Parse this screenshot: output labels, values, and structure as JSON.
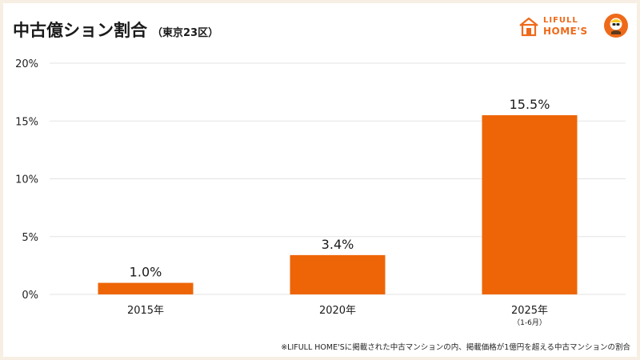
{
  "header": {
    "title": "中古億ション割合",
    "subtitle": "（東京23区）"
  },
  "logo": {
    "line1": "LIFULL",
    "line2": "HOME'S"
  },
  "chart_data": {
    "type": "bar",
    "title": "中古億ション割合",
    "subtitle": "（東京23区）",
    "categories": [
      "2015年",
      "2020年",
      "2025年"
    ],
    "category_notes": [
      "",
      "",
      "（1-6月）"
    ],
    "values": [
      1.0,
      3.4,
      15.5
    ],
    "data_labels": [
      "1.0%",
      "3.4%",
      "15.5%"
    ],
    "ylim": [
      0,
      20
    ],
    "yticks": [
      0,
      5,
      10,
      15,
      20
    ],
    "ytick_labels": [
      "0%",
      "5%",
      "10%",
      "15%",
      "20%"
    ],
    "xlabel": "",
    "ylabel": "",
    "grid": true,
    "legend": "none",
    "bar_color": "#EE6507",
    "grid_color": "#E3E3E3"
  },
  "footnote": "※LIFULL HOME'Sに掲載された中古マンションの内、掲載価格が1億円を超える中古マンションの割合"
}
